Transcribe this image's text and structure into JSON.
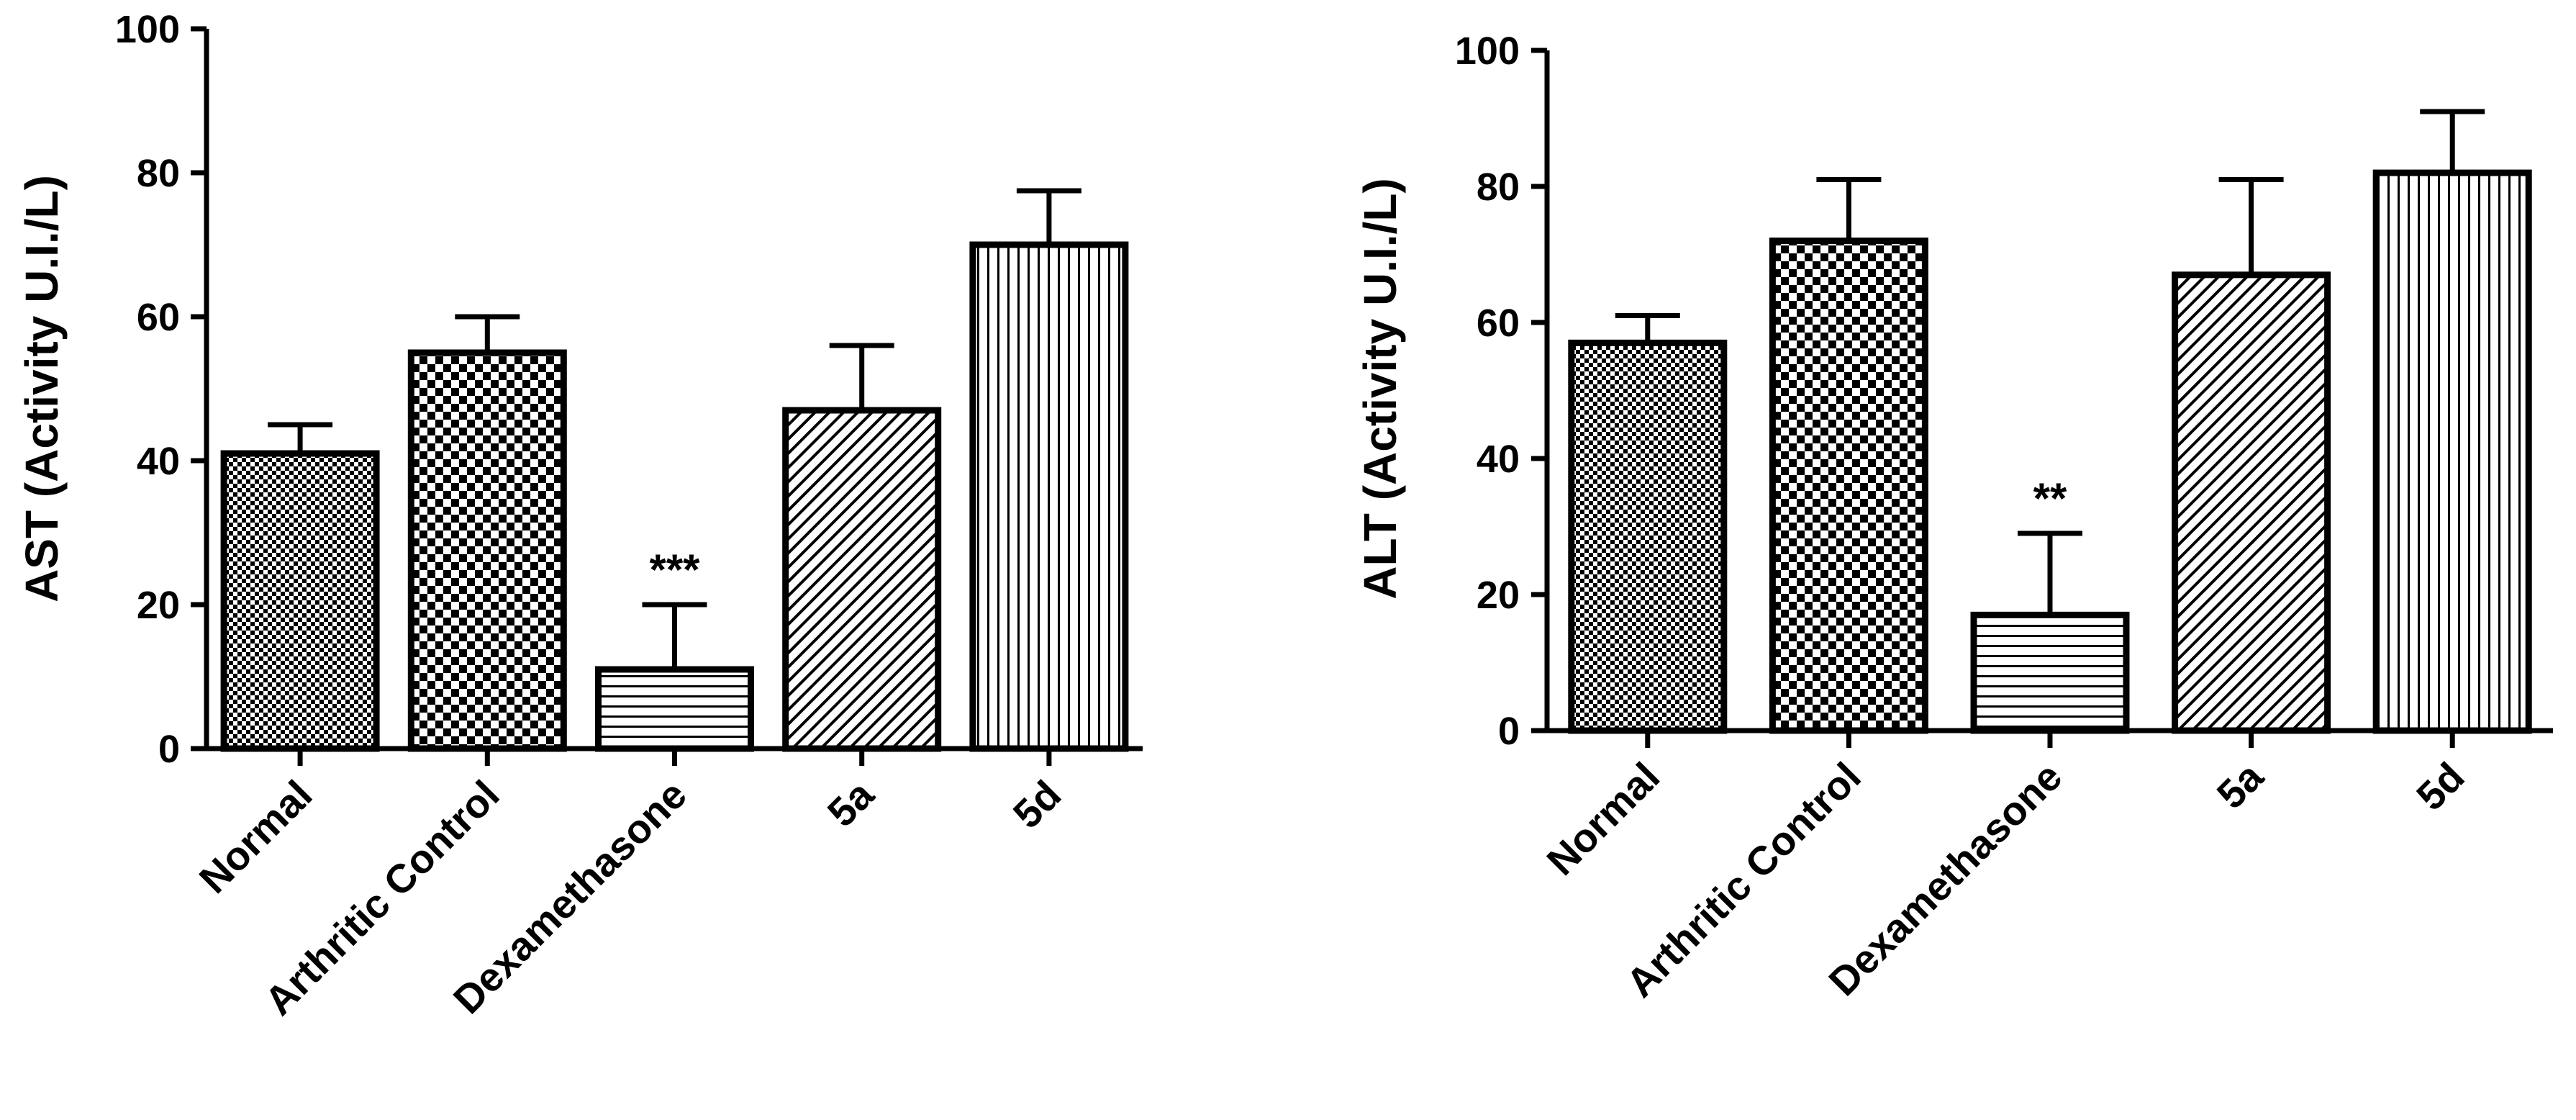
{
  "chart_data": [
    {
      "type": "bar",
      "title": "",
      "xlabel": "",
      "ylabel": "AST (Activity U.I./L)",
      "ylim": [
        0,
        100
      ],
      "yticks": [
        "0",
        "20",
        "40",
        "60",
        "80",
        "100"
      ],
      "categories": [
        "Normal",
        "Arthritic Control",
        "Dexamethasone",
        "5a",
        "5d"
      ],
      "values": [
        41,
        55,
        11,
        47,
        70
      ],
      "errors": [
        4,
        5,
        9,
        9,
        7.5
      ],
      "patterns": [
        "fine-check",
        "checker",
        "horizontal",
        "diagonal",
        "vertical"
      ],
      "annotations": [
        {
          "category": "Dexamethasone",
          "text": "***"
        }
      ]
    },
    {
      "type": "bar",
      "title": "",
      "xlabel": "",
      "ylabel": "ALT (Activity U.I./L)",
      "ylim": [
        0,
        100
      ],
      "yticks": [
        "0",
        "20",
        "40",
        "60",
        "80",
        "100"
      ],
      "categories": [
        "Normal",
        "Arthritic Control",
        "Dexamethasone",
        "5a",
        "5d"
      ],
      "values": [
        57,
        72,
        17,
        67,
        82
      ],
      "errors": [
        4,
        9,
        12,
        14,
        9
      ],
      "patterns": [
        "fine-check",
        "checker",
        "horizontal",
        "diagonal",
        "vertical"
      ],
      "annotations": [
        {
          "category": "Dexamethasone",
          "text": "**"
        }
      ]
    }
  ]
}
